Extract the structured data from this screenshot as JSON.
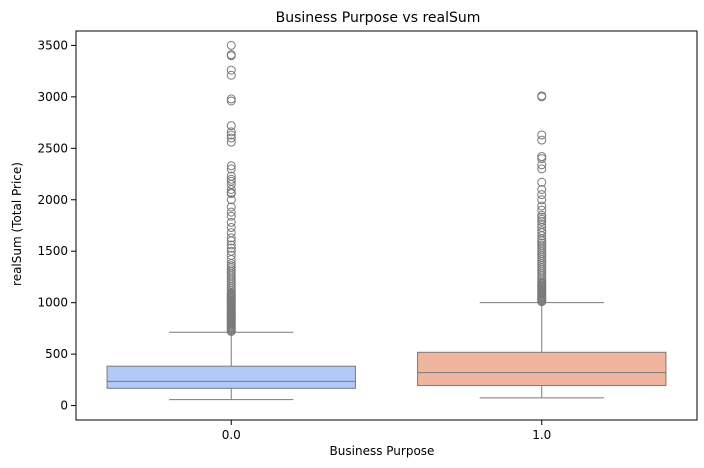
{
  "chart_data": {
    "type": "box",
    "title": "Business Purpose  vs realSum",
    "xlabel": "Business Purpose",
    "ylabel": "realSum (Total Price)",
    "ylim": [
      -140,
      3640
    ],
    "yticks": [
      0,
      500,
      1000,
      1500,
      2000,
      2500,
      3000,
      3500
    ],
    "grid": false,
    "series": [
      {
        "category": "0.0",
        "color": "#b2c9f7",
        "whisker_low": 58,
        "q1": 168,
        "median": 235,
        "q3": 383,
        "whisker_high": 713,
        "outliers": [
          720,
          730,
          740,
          750,
          760,
          770,
          780,
          790,
          800,
          810,
          820,
          830,
          840,
          850,
          860,
          870,
          880,
          890,
          900,
          910,
          920,
          930,
          940,
          950,
          960,
          970,
          980,
          990,
          1000,
          1010,
          1020,
          1030,
          1040,
          1050,
          1060,
          1070,
          1080,
          1090,
          1100,
          1120,
          1140,
          1160,
          1180,
          1200,
          1220,
          1240,
          1260,
          1280,
          1300,
          1320,
          1340,
          1360,
          1380,
          1420,
          1460,
          1500,
          1530,
          1560,
          1600,
          1630,
          1680,
          1730,
          1780,
          1840,
          1880,
          1930,
          2000,
          2060,
          2070,
          2100,
          2150,
          2180,
          2200,
          2230,
          2300,
          2330,
          2560,
          2600,
          2630,
          2660,
          2720,
          2960,
          2980,
          3210,
          3260,
          3400,
          3410,
          3500
        ]
      },
      {
        "category": "1.0",
        "color": "#efb59f",
        "whisker_low": 75,
        "q1": 195,
        "median": 320,
        "q3": 518,
        "whisker_high": 1000,
        "outliers": [
          1010,
          1020,
          1030,
          1040,
          1050,
          1060,
          1070,
          1080,
          1090,
          1100,
          1110,
          1120,
          1130,
          1140,
          1150,
          1160,
          1170,
          1180,
          1190,
          1200,
          1220,
          1240,
          1260,
          1280,
          1300,
          1320,
          1340,
          1360,
          1380,
          1400,
          1420,
          1440,
          1460,
          1480,
          1500,
          1520,
          1540,
          1560,
          1580,
          1600,
          1620,
          1650,
          1680,
          1700,
          1730,
          1760,
          1790,
          1810,
          1830,
          1850,
          1900,
          1940,
          2000,
          2050,
          2100,
          2170,
          2300,
          2340,
          2400,
          2420,
          2580,
          2630,
          3000,
          3010
        ]
      }
    ]
  }
}
